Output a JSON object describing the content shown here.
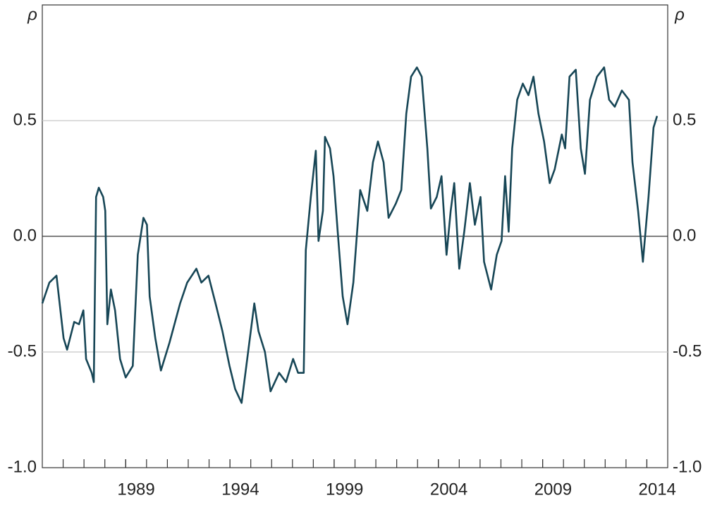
{
  "chart_data": {
    "type": "line",
    "y_label": "ρ",
    "y2_label": "ρ",
    "xlim": [
      1985,
      2015
    ],
    "xticks": [
      1989,
      1994,
      1999,
      2004,
      2009,
      2014
    ],
    "ylim": [
      -1,
      1
    ],
    "yticks": [
      {
        "value": -1,
        "label": "-1.0"
      },
      -0.5,
      {
        "value": 0,
        "label": "0.0"
      },
      0.5
    ],
    "y2lim": [
      -1,
      1
    ],
    "y2ticks": [
      {
        "value": -1,
        "label": "-1.0"
      },
      -0.5,
      {
        "value": 0,
        "label": "0.0"
      },
      0.5
    ],
    "grid": true,
    "series": [
      {
        "color": "#174656",
        "x": [
          1985.0,
          1985.34,
          1985.68,
          1986.02,
          1986.19,
          1986.53,
          1986.76,
          1986.97,
          1987.1,
          1987.37,
          1987.47,
          1987.58,
          1987.71,
          1987.92,
          1988.02,
          1988.12,
          1988.29,
          1988.49,
          1988.73,
          1989.0,
          1989.34,
          1989.58,
          1989.85,
          1990.02,
          1990.15,
          1990.42,
          1990.69,
          1991.1,
          1991.61,
          1991.95,
          1992.39,
          1992.63,
          1992.97,
          1993.31,
          1993.64,
          1993.98,
          1994.25,
          1994.56,
          1994.83,
          1995.17,
          1995.37,
          1995.68,
          1995.95,
          1996.36,
          1996.69,
          1997.03,
          1997.27,
          1997.54,
          1997.64,
          1997.88,
          1998.12,
          1998.25,
          1998.46,
          1998.56,
          1998.8,
          1998.97,
          1999.17,
          1999.41,
          1999.64,
          1999.92,
          2000.25,
          2000.59,
          2000.86,
          2001.1,
          2001.37,
          2001.61,
          2001.95,
          2002.22,
          2002.46,
          2002.69,
          2002.97,
          2003.2,
          2003.47,
          2003.64,
          2003.92,
          2004.15,
          2004.39,
          2004.59,
          2004.76,
          2005.0,
          2005.24,
          2005.51,
          2005.75,
          2006.02,
          2006.19,
          2006.53,
          2006.8,
          2007.03,
          2007.2,
          2007.37,
          2007.54,
          2007.78,
          2008.05,
          2008.32,
          2008.56,
          2008.8,
          2009.07,
          2009.34,
          2009.58,
          2009.92,
          2010.08,
          2010.29,
          2010.59,
          2010.83,
          2011.03,
          2011.27,
          2011.61,
          2011.95,
          2012.19,
          2012.46,
          2012.8,
          2013.14,
          2013.31,
          2013.58,
          2013.81,
          2014.08,
          2014.32,
          2014.49
        ],
        "values": [
          -0.29,
          -0.2,
          -0.17,
          -0.44,
          -0.49,
          -0.37,
          -0.38,
          -0.32,
          -0.53,
          -0.59,
          -0.63,
          0.17,
          0.21,
          0.17,
          0.11,
          -0.38,
          -0.23,
          -0.32,
          -0.53,
          -0.61,
          -0.56,
          -0.08,
          0.08,
          0.05,
          -0.26,
          -0.44,
          -0.58,
          -0.46,
          -0.29,
          -0.2,
          -0.14,
          -0.2,
          -0.17,
          -0.29,
          -0.41,
          -0.56,
          -0.66,
          -0.72,
          -0.53,
          -0.29,
          -0.41,
          -0.5,
          -0.67,
          -0.59,
          -0.63,
          -0.53,
          -0.59,
          -0.59,
          -0.06,
          0.17,
          0.37,
          -0.02,
          0.11,
          0.43,
          0.38,
          0.26,
          0.02,
          -0.26,
          -0.38,
          -0.2,
          0.2,
          0.11,
          0.32,
          0.41,
          0.32,
          0.08,
          0.14,
          0.2,
          0.53,
          0.69,
          0.73,
          0.69,
          0.38,
          0.12,
          0.17,
          0.26,
          -0.08,
          0.11,
          0.23,
          -0.14,
          0.02,
          0.23,
          0.05,
          0.17,
          -0.11,
          -0.23,
          -0.08,
          -0.02,
          0.26,
          0.02,
          0.38,
          0.59,
          0.66,
          0.61,
          0.69,
          0.53,
          0.41,
          0.23,
          0.29,
          0.44,
          0.38,
          0.69,
          0.72,
          0.38,
          0.27,
          0.59,
          0.69,
          0.73,
          0.59,
          0.56,
          0.63,
          0.59,
          0.32,
          0.11,
          -0.11,
          0.17,
          0.47,
          0.52
        ]
      }
    ]
  }
}
